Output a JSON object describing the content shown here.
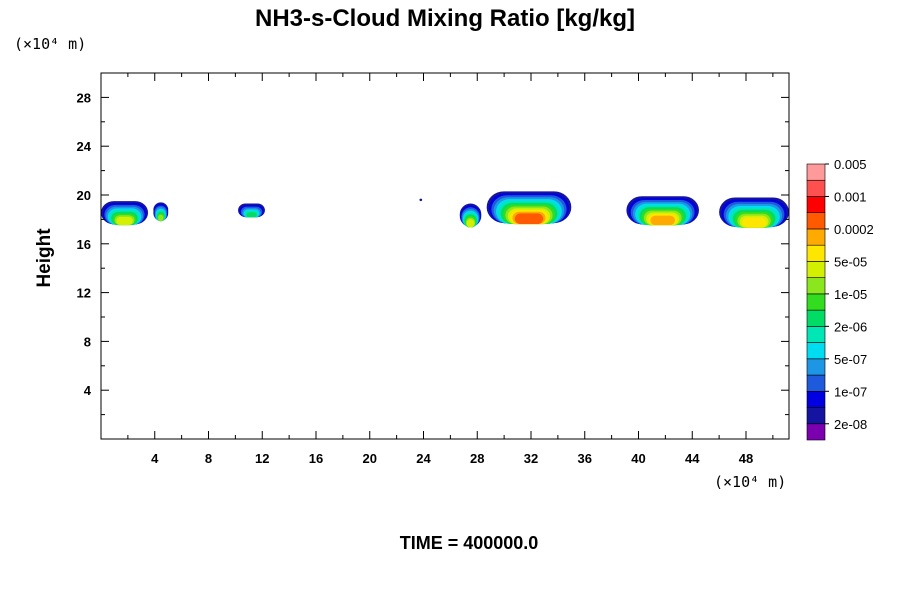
{
  "chart_data": {
    "type": "contour",
    "title": "NH3-s-Cloud Mixing Ratio [kg/kg]",
    "ylabel": "Height",
    "xunit": "(×10⁴ m)",
    "yunit": "(×10⁴ m)",
    "xlim": [
      0,
      51.2
    ],
    "ylim": [
      0,
      30
    ],
    "x_major_ticks": [
      4,
      8,
      12,
      16,
      20,
      24,
      28,
      32,
      36,
      40,
      44,
      48
    ],
    "y_major_ticks": [
      4,
      8,
      12,
      16,
      20,
      24,
      28
    ],
    "time_label": "TIME = 400000.0",
    "colorbar": {
      "colors": [
        "#7a00b0",
        "#1414a0",
        "#0000e0",
        "#1e5adc",
        "#1e96e6",
        "#00dcf0",
        "#00e6b4",
        "#00dc64",
        "#32dc1e",
        "#8ce61e",
        "#d2f000",
        "#ffe600",
        "#ffaa00",
        "#ff5a00",
        "#ff0000",
        "#ff5050",
        "#ff9a9a"
      ],
      "labels": [
        "2e-08",
        "1e-07",
        "5e-07",
        "2e-06",
        "1e-05",
        "5e-05",
        "0.0002",
        "0.001",
        "0.005"
      ]
    },
    "clouds": [
      {
        "x_start": 0.0,
        "x_end": 3.5,
        "y_bottom": 17.6,
        "y_top": 19.5,
        "peak_level": 10
      },
      {
        "x_start": 3.9,
        "x_end": 5.0,
        "y_bottom": 17.9,
        "y_top": 19.4,
        "peak_level": 9
      },
      {
        "x_start": 10.2,
        "x_end": 12.2,
        "y_bottom": 18.2,
        "y_top": 19.3,
        "peak_level": 7
      },
      {
        "x_start": 23.7,
        "x_end": 23.9,
        "y_bottom": 19.5,
        "y_top": 19.7,
        "peak_level": 1
      },
      {
        "x_start": 26.7,
        "x_end": 28.3,
        "y_bottom": 17.4,
        "y_top": 19.3,
        "peak_level": 10
      },
      {
        "x_start": 28.7,
        "x_end": 35.0,
        "y_bottom": 17.7,
        "y_top": 20.3,
        "peak_level": 13
      },
      {
        "x_start": 39.1,
        "x_end": 44.5,
        "y_bottom": 17.6,
        "y_top": 19.9,
        "peak_level": 12
      },
      {
        "x_start": 46.0,
        "x_end": 51.2,
        "y_bottom": 17.4,
        "y_top": 19.8,
        "peak_level": 11
      }
    ]
  }
}
